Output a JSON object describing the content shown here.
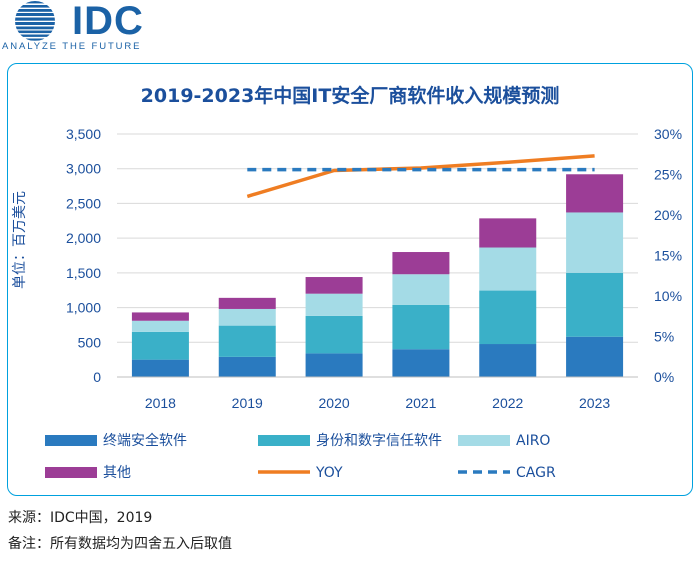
{
  "logo": {
    "brand": "IDC",
    "tagline": "ANALYZE THE FUTURE",
    "color": "#1b62a6"
  },
  "chart_data": {
    "type": "bar",
    "title": "2019-2023年中国IT安全厂商软件收入规模预测",
    "ylabel": "单位：百万美元",
    "ylim": [
      0,
      3500
    ],
    "y_ticks": [
      "0",
      "500",
      "1,000",
      "1,500",
      "2,000",
      "2,500",
      "3,000",
      "3,500"
    ],
    "y2lim": [
      0,
      30
    ],
    "y2_ticks": [
      "0%",
      "5%",
      "10%",
      "15%",
      "20%",
      "25%",
      "30%"
    ],
    "categories": [
      "2018",
      "2019",
      "2020",
      "2021",
      "2022",
      "2023"
    ],
    "stacked": true,
    "grid": true,
    "legend_position": "bottom",
    "series": [
      {
        "name": "终端安全软件",
        "color": "#2a7abf",
        "values": [
          250,
          290,
          340,
          400,
          475,
          580
        ]
      },
      {
        "name": "身份和数字信任软件",
        "color": "#3ab0c8",
        "values": [
          400,
          450,
          540,
          640,
          770,
          920
        ]
      },
      {
        "name": "AIRO",
        "color": "#a4dbe6",
        "values": [
          160,
          240,
          320,
          440,
          620,
          870
        ]
      },
      {
        "name": "其他",
        "color": "#9c3d96",
        "values": [
          120,
          160,
          240,
          320,
          420,
          550
        ]
      }
    ],
    "lines": [
      {
        "name": "YOY",
        "color": "#ef7d22",
        "style": "solid",
        "axis": "secondary",
        "values": [
          null,
          22.3,
          25.5,
          25.8,
          26.5,
          27.3
        ]
      },
      {
        "name": "CAGR",
        "color": "#2a7abf",
        "style": "dashed",
        "axis": "secondary",
        "values": [
          null,
          25.6,
          25.6,
          25.6,
          25.6,
          25.6
        ]
      }
    ]
  },
  "footnotes": {
    "source": "来源：IDC中国，2019",
    "remark": "备注：所有数据均为四舍五入后取值"
  }
}
